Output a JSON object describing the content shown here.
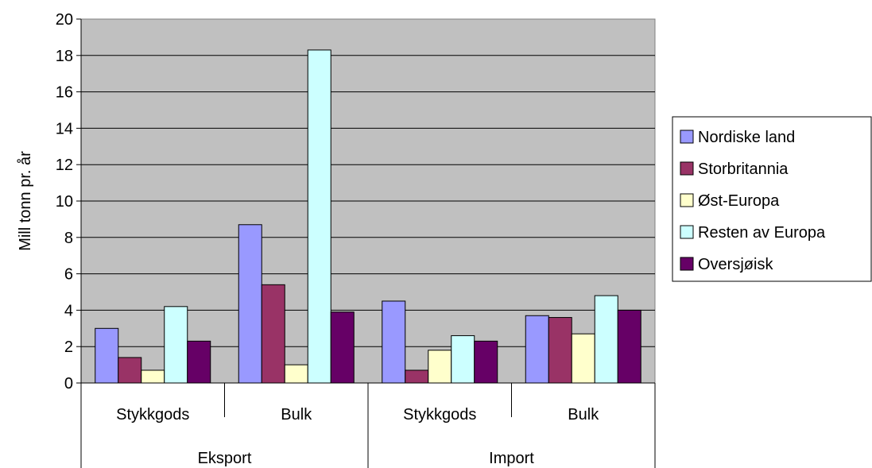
{
  "chart_data": {
    "type": "bar",
    "title": "",
    "xlabel": "",
    "ylabel": "Mill tonn pr. år",
    "ylim": [
      0,
      20
    ],
    "yticks": [
      0,
      2,
      4,
      6,
      8,
      10,
      12,
      14,
      16,
      18,
      20
    ],
    "grid": true,
    "legend_position": "right",
    "groups": [
      "Eksport",
      "Import"
    ],
    "categories": [
      "Stykkgods",
      "Bulk",
      "Stykkgods",
      "Bulk"
    ],
    "series": [
      {
        "name": "Nordiske land",
        "color": "#9999ff",
        "values": [
          3.0,
          8.7,
          4.5,
          3.7
        ]
      },
      {
        "name": "Storbritannia",
        "color": "#993366",
        "values": [
          1.4,
          5.4,
          0.7,
          3.6
        ]
      },
      {
        "name": "Øst-Europa",
        "color": "#ffffcc",
        "values": [
          0.7,
          1.0,
          1.8,
          2.7
        ]
      },
      {
        "name": "Resten av Europa",
        "color": "#ccffff",
        "values": [
          4.2,
          18.3,
          2.6,
          4.8
        ]
      },
      {
        "name": "Oversjøisk",
        "color": "#660066",
        "values": [
          2.3,
          3.9,
          2.3,
          4.0
        ]
      }
    ],
    "plot_background": "#c0c0c0"
  }
}
